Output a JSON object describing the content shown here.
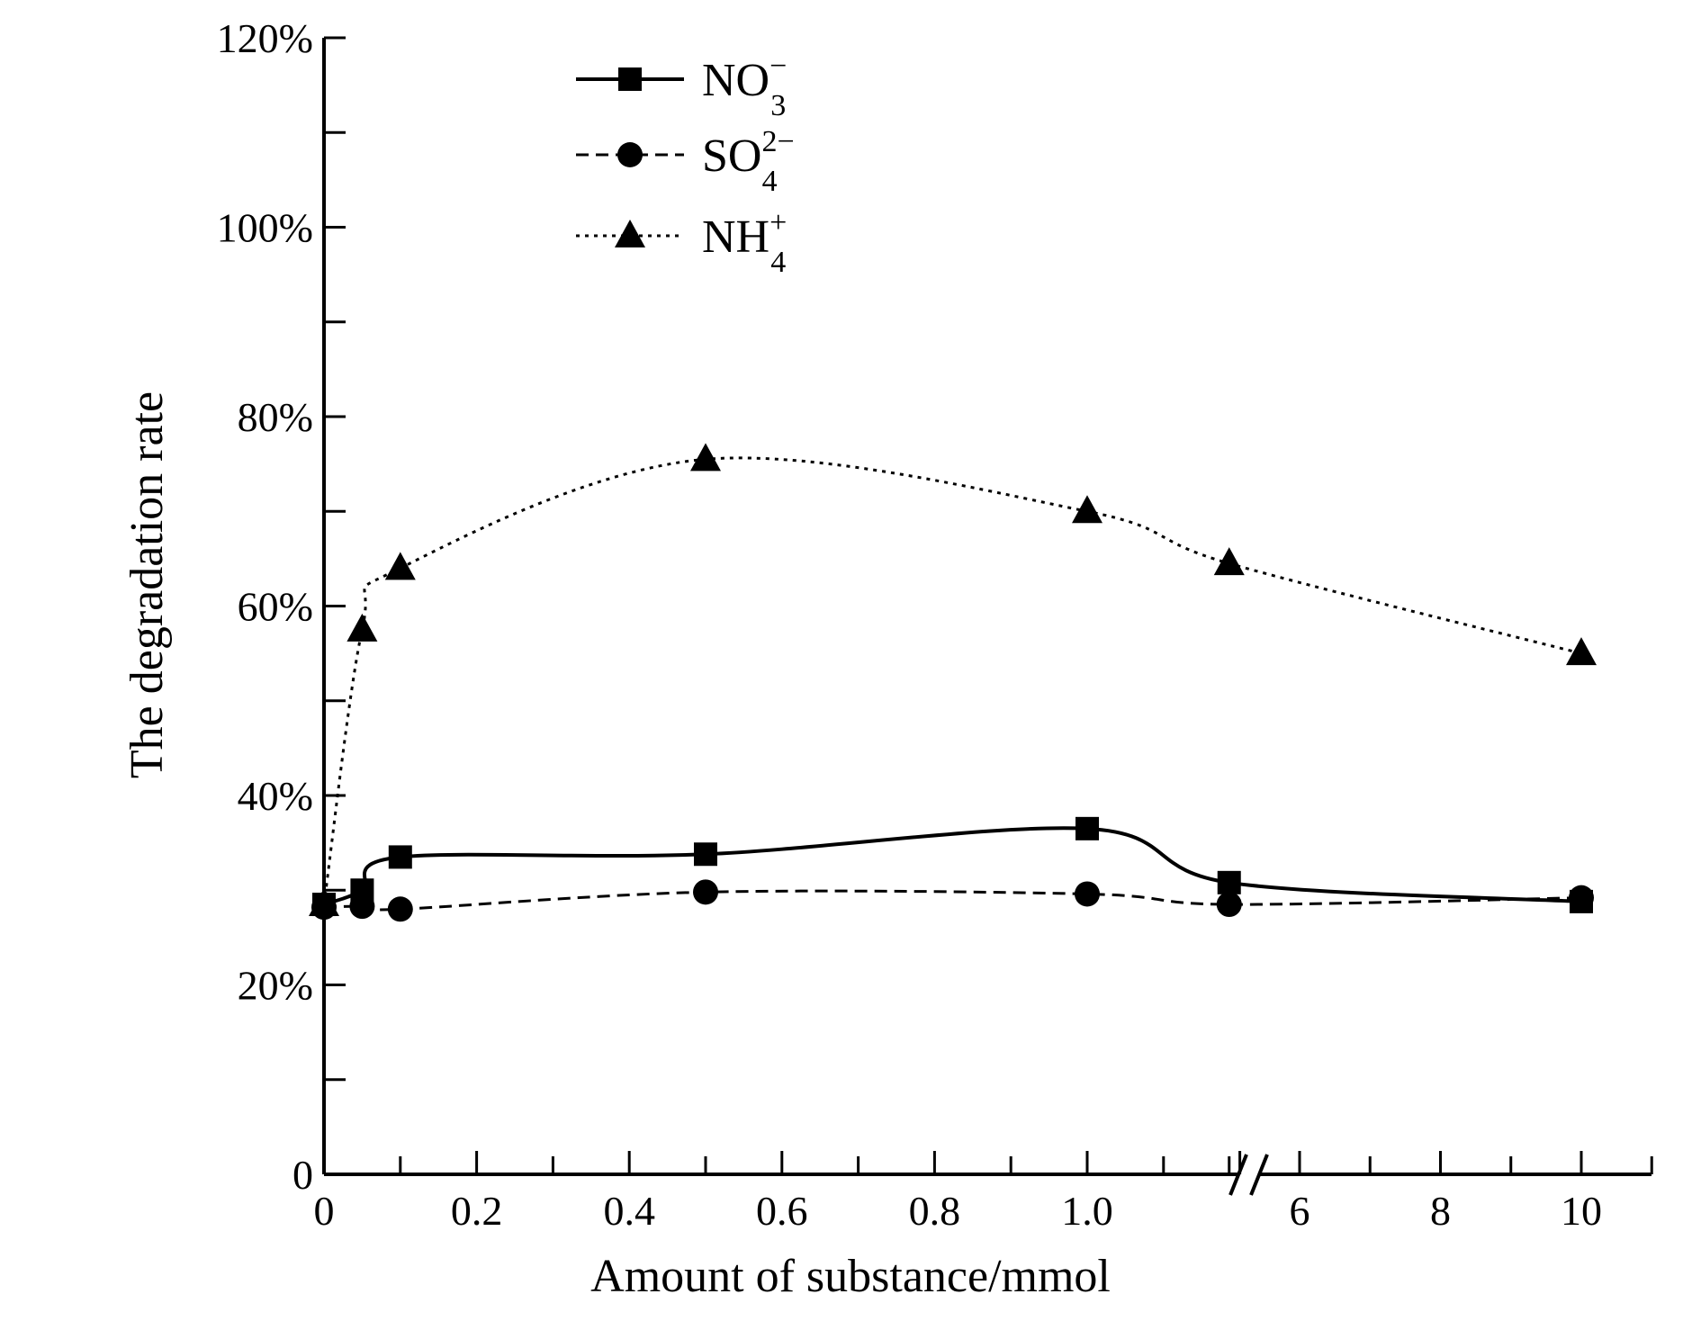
{
  "chart_data": {
    "type": "line",
    "title": "",
    "xlabel": "Amount of substance/mmol",
    "ylabel": "The degradation rate",
    "ylim": [
      0,
      120
    ],
    "x_segments": [
      {
        "range": [
          0,
          1.25
        ],
        "ticks": [
          "0",
          "0.2",
          "0.4",
          "0.6",
          "0.8",
          "1.0"
        ]
      },
      {
        "range": [
          4.5,
          11
        ],
        "ticks": [
          "6",
          "8",
          "10"
        ]
      }
    ],
    "y_ticks": [
      "0",
      "20%",
      "40%",
      "60%",
      "80%",
      "100%",
      "120%"
    ],
    "axis_break": true,
    "legend_position": "top-left",
    "series": [
      {
        "name": "NO3-",
        "label_base": "NO",
        "label_sub": "3",
        "label_sup": "−",
        "marker": "square",
        "line_style": "solid",
        "color": "#000000",
        "points": [
          [
            0,
            28.5
          ],
          [
            0.05,
            30
          ],
          [
            0.1,
            33.5
          ],
          [
            0.5,
            33.8
          ],
          [
            1.0,
            36.5
          ],
          [
            5,
            30.8
          ],
          [
            10,
            28.8
          ]
        ]
      },
      {
        "name": "SO4 2-",
        "label_base": "SO",
        "label_sub": "4",
        "label_sup": "2−",
        "marker": "circle",
        "line_style": "dashed",
        "color": "#000000",
        "points": [
          [
            0,
            28.2
          ],
          [
            0.05,
            28.3
          ],
          [
            0.1,
            28.0
          ],
          [
            0.5,
            29.8
          ],
          [
            1.0,
            29.6
          ],
          [
            5,
            28.5
          ],
          [
            10,
            29.2
          ]
        ]
      },
      {
        "name": "NH4+",
        "label_base": "NH",
        "label_sub": "4",
        "label_sup": "+",
        "marker": "triangle",
        "line_style": "dotted",
        "color": "#000000",
        "points": [
          [
            0,
            28.5
          ],
          [
            0.05,
            57.5
          ],
          [
            0.1,
            64
          ],
          [
            0.5,
            75.5
          ],
          [
            1.0,
            70
          ],
          [
            5,
            64.5
          ],
          [
            10,
            55
          ]
        ]
      }
    ]
  }
}
